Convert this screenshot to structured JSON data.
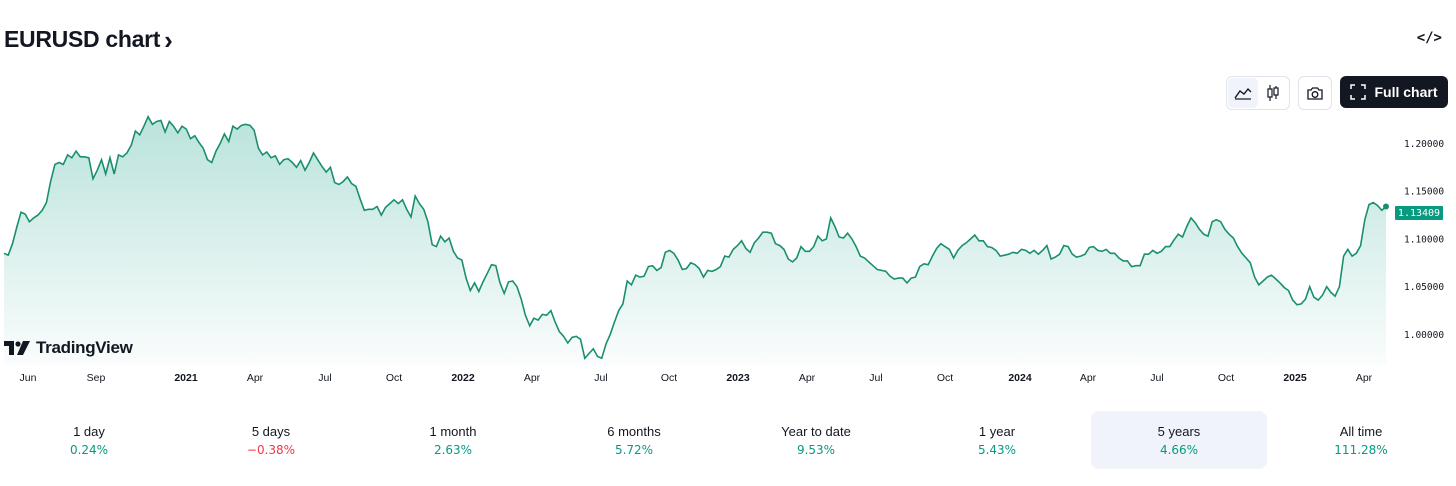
{
  "header": {
    "title": "EURUSD chart",
    "title_chevron": "›",
    "embed_icon": "</>"
  },
  "toolbar": {
    "line_icon": "area-chart-icon",
    "candles_icon": "candlestick-icon",
    "camera_icon": "camera-icon",
    "full_chart_label": "Full chart"
  },
  "branding": {
    "logo_text": "TradingView"
  },
  "colors": {
    "line": "#1a8f6f",
    "up": "#089981",
    "down": "#f23645",
    "text": "#131722"
  },
  "chart_data": {
    "type": "area",
    "title": "",
    "xlabel": "",
    "ylabel": "",
    "ylim": [
      0.968,
      1.235
    ],
    "y_ticks": [
      "1.20000",
      "1.15000",
      "1.10000",
      "1.05000",
      "1.00000"
    ],
    "y_tick_values": [
      1.2,
      1.15,
      1.1,
      1.05,
      1.0
    ],
    "x_ticks": [
      {
        "label": "Jun",
        "bold": false
      },
      {
        "label": "Sep",
        "bold": false
      },
      {
        "label": "2021",
        "bold": true
      },
      {
        "label": "Apr",
        "bold": false
      },
      {
        "label": "Jul",
        "bold": false
      },
      {
        "label": "Oct",
        "bold": false
      },
      {
        "label": "2022",
        "bold": true
      },
      {
        "label": "Apr",
        "bold": false
      },
      {
        "label": "Jul",
        "bold": false
      },
      {
        "label": "Oct",
        "bold": false
      },
      {
        "label": "2023",
        "bold": true
      },
      {
        "label": "Apr",
        "bold": false
      },
      {
        "label": "Jul",
        "bold": false
      },
      {
        "label": "Oct",
        "bold": false
      },
      {
        "label": "2024",
        "bold": true
      },
      {
        "label": "Apr",
        "bold": false
      },
      {
        "label": "Jul",
        "bold": false
      },
      {
        "label": "Oct",
        "bold": false
      },
      {
        "label": "2025",
        "bold": true
      },
      {
        "label": "Apr",
        "bold": false
      }
    ],
    "last_price": "1.13409",
    "series": [
      {
        "values": [
          1.085,
          1.083,
          1.095,
          1.112,
          1.128,
          1.126,
          1.118,
          1.122,
          1.125,
          1.13,
          1.138,
          1.16,
          1.178,
          1.18,
          1.178,
          1.188,
          1.185,
          1.192,
          1.186,
          1.186,
          1.185,
          1.163,
          1.172,
          1.183,
          1.168,
          1.185,
          1.168,
          1.188,
          1.186,
          1.19,
          1.198,
          1.213,
          1.209,
          1.218,
          1.228,
          1.22,
          1.223,
          1.224,
          1.212,
          1.223,
          1.218,
          1.211,
          1.218,
          1.215,
          1.205,
          1.208,
          1.201,
          1.195,
          1.183,
          1.18,
          1.192,
          1.2,
          1.21,
          1.202,
          1.218,
          1.215,
          1.219,
          1.22,
          1.219,
          1.214,
          1.195,
          1.188,
          1.191,
          1.185,
          1.187,
          1.178,
          1.183,
          1.184,
          1.18,
          1.175,
          1.182,
          1.172,
          1.18,
          1.19,
          1.183,
          1.176,
          1.17,
          1.175,
          1.159,
          1.157,
          1.16,
          1.165,
          1.158,
          1.155,
          1.142,
          1.13,
          1.131,
          1.131,
          1.134,
          1.125,
          1.133,
          1.137,
          1.141,
          1.137,
          1.141,
          1.131,
          1.123,
          1.145,
          1.137,
          1.131,
          1.118,
          1.094,
          1.092,
          1.103,
          1.097,
          1.101,
          1.087,
          1.08,
          1.078,
          1.059,
          1.046,
          1.054,
          1.045,
          1.055,
          1.064,
          1.073,
          1.072,
          1.054,
          1.043,
          1.055,
          1.056,
          1.05,
          1.037,
          1.02,
          1.009,
          1.017,
          1.015,
          1.021,
          1.02,
          1.025,
          1.013,
          1.003,
          0.998,
          0.991,
          0.997,
          0.998,
          0.995,
          0.975,
          0.98,
          0.985,
          0.977,
          0.975,
          0.99,
          1.0,
          1.013,
          1.025,
          1.032,
          1.056,
          1.052,
          1.062,
          1.06,
          1.061,
          1.071,
          1.072,
          1.067,
          1.07,
          1.086,
          1.088,
          1.085,
          1.078,
          1.068,
          1.069,
          1.075,
          1.073,
          1.069,
          1.06,
          1.067,
          1.066,
          1.068,
          1.071,
          1.082,
          1.081,
          1.089,
          1.093,
          1.098,
          1.09,
          1.086,
          1.096,
          1.101,
          1.107,
          1.107,
          1.106,
          1.095,
          1.093,
          1.089,
          1.079,
          1.076,
          1.08,
          1.092,
          1.087,
          1.087,
          1.092,
          1.103,
          1.098,
          1.1,
          1.122,
          1.113,
          1.102,
          1.101,
          1.106,
          1.1,
          1.092,
          1.082,
          1.08,
          1.076,
          1.072,
          1.068,
          1.067,
          1.066,
          1.061,
          1.058,
          1.059,
          1.059,
          1.054,
          1.059,
          1.06,
          1.071,
          1.074,
          1.073,
          1.082,
          1.09,
          1.095,
          1.092,
          1.089,
          1.08,
          1.088,
          1.093,
          1.096,
          1.1,
          1.104,
          1.098,
          1.098,
          1.092,
          1.091,
          1.088,
          1.082,
          1.083,
          1.084,
          1.086,
          1.085,
          1.089,
          1.088,
          1.085,
          1.088,
          1.084,
          1.088,
          1.093,
          1.079,
          1.081,
          1.084,
          1.093,
          1.092,
          1.084,
          1.081,
          1.082,
          1.084,
          1.091,
          1.092,
          1.088,
          1.087,
          1.089,
          1.085,
          1.085,
          1.08,
          1.077,
          1.077,
          1.071,
          1.072,
          1.072,
          1.084,
          1.084,
          1.088,
          1.085,
          1.087,
          1.092,
          1.092,
          1.099,
          1.105,
          1.102,
          1.113,
          1.122,
          1.117,
          1.11,
          1.105,
          1.103,
          1.118,
          1.12,
          1.118,
          1.11,
          1.105,
          1.101,
          1.092,
          1.085,
          1.08,
          1.075,
          1.06,
          1.052,
          1.056,
          1.06,
          1.062,
          1.058,
          1.054,
          1.049,
          1.046,
          1.036,
          1.031,
          1.032,
          1.037,
          1.05,
          1.039,
          1.036,
          1.041,
          1.05,
          1.044,
          1.04,
          1.05,
          1.082,
          1.089,
          1.082,
          1.085,
          1.093,
          1.12,
          1.136,
          1.138,
          1.135,
          1.13,
          1.134
        ]
      }
    ]
  },
  "performance": [
    {
      "label": "1 day",
      "value": "0.24%",
      "dir": "up",
      "active": false
    },
    {
      "label": "5 days",
      "value": "−0.38%",
      "dir": "down",
      "active": false
    },
    {
      "label": "1 month",
      "value": "2.63%",
      "dir": "up",
      "active": false
    },
    {
      "label": "6 months",
      "value": "5.72%",
      "dir": "up",
      "active": false
    },
    {
      "label": "Year to date",
      "value": "9.53%",
      "dir": "up",
      "active": false
    },
    {
      "label": "1 year",
      "value": "5.43%",
      "dir": "up",
      "active": false
    },
    {
      "label": "5 years",
      "value": "4.66%",
      "dir": "up",
      "active": true
    },
    {
      "label": "All time",
      "value": "111.28%",
      "dir": "up",
      "active": false
    }
  ]
}
